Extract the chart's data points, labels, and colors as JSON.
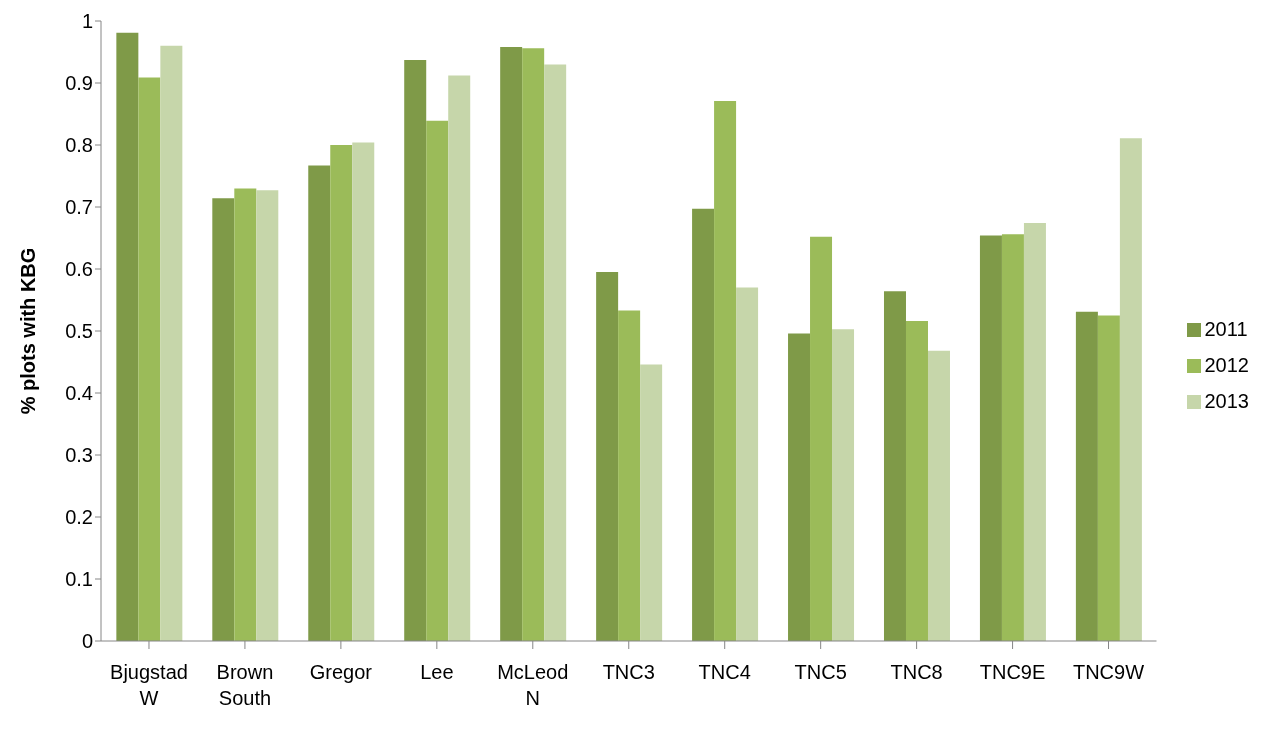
{
  "chart_data": {
    "type": "bar",
    "ylabel": "% plots with KBG",
    "categories": [
      "Bjugstad W",
      "Brown South",
      "Gregor",
      "Lee",
      "McLeod N",
      "TNC3",
      "TNC4",
      "TNC5",
      "TNC8",
      "TNC9E",
      "TNC9W"
    ],
    "series": [
      {
        "name": "2011",
        "color": "#7f9a48",
        "values": [
          0.981,
          0.714,
          0.767,
          0.937,
          0.958,
          0.595,
          0.697,
          0.496,
          0.564,
          0.654,
          0.531
        ]
      },
      {
        "name": "2012",
        "color": "#9bbb59",
        "values": [
          0.909,
          0.73,
          0.8,
          0.839,
          0.956,
          0.533,
          0.871,
          0.652,
          0.516,
          0.656,
          0.525
        ]
      },
      {
        "name": "2013",
        "color": "#c6d6aa",
        "values": [
          0.96,
          0.727,
          0.804,
          0.912,
          0.93,
          0.446,
          0.57,
          0.503,
          0.468,
          0.674,
          0.811
        ]
      }
    ],
    "ylim": [
      0,
      1
    ],
    "yticks": [
      0,
      0.1,
      0.2,
      0.3,
      0.4,
      0.5,
      0.6,
      0.7,
      0.8,
      0.9,
      1
    ],
    "grid": false,
    "legend": "right"
  }
}
